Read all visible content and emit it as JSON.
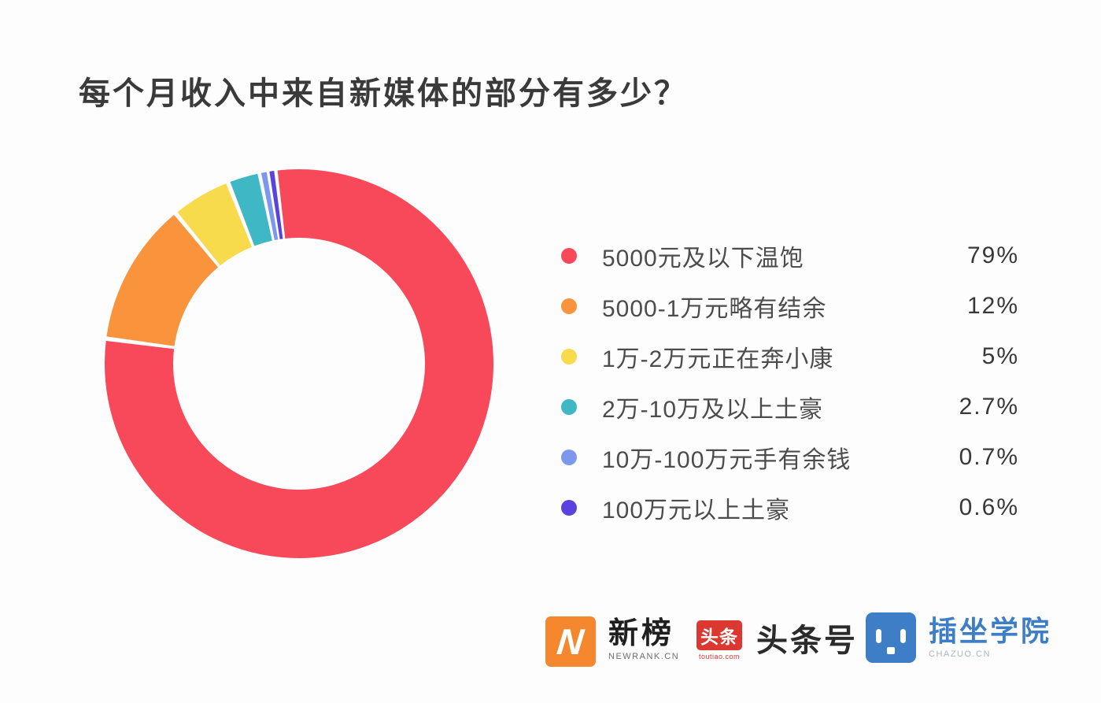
{
  "title": "每个月收入中来自新媒体的部分有多少？",
  "chart_data": {
    "type": "pie",
    "variant": "donut",
    "title": "每个月收入中来自新媒体的部分有多少？",
    "start_angle_deg": -7,
    "direction": "clockwise",
    "labels": [
      "5000元及以下温饱",
      "5000-1万元略有结余",
      "1万-2万元正在奔小康",
      "2万-10万及以上土豪",
      "10万-100万元手有余钱",
      "100万元以上土豪"
    ],
    "values": [
      79,
      12,
      5,
      2.7,
      0.7,
      0.6
    ],
    "display_values": [
      "79%",
      "12%",
      "5%",
      "2.7%",
      "0.7%",
      "0.6%"
    ],
    "colors": [
      "#F8495B",
      "#F9943C",
      "#F8DA4D",
      "#40B7C4",
      "#7D97EC",
      "#5A43DC"
    ],
    "legend_position": "right",
    "hole_ratio": 0.65
  },
  "footer": {
    "newrank": {
      "name": "新榜",
      "subtitle": "NEWRANK.CN",
      "badge_letter": "N",
      "badge_color": "#F5872E"
    },
    "toutiao": {
      "name": "头条号",
      "badge_text": "头条",
      "badge_subtext": "toutiao.com",
      "badge_color": "#DC3832",
      "subtext_color": "#DC3832"
    },
    "chazuo": {
      "name": "插坐学院",
      "subtitle": "CHAZUO.CN",
      "badge_color": "#3D7EC6",
      "name_color": "#3D7EC6"
    }
  }
}
